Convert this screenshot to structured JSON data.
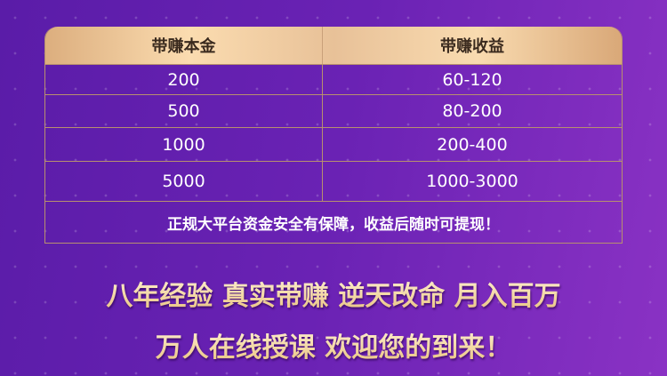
{
  "table": {
    "headers": [
      "带赚本金",
      "带赚收益"
    ],
    "rows": [
      [
        "200",
        "60-120"
      ],
      [
        "500",
        "80-200"
      ],
      [
        "1000",
        "200-400"
      ],
      [
        "5000",
        "1000-3000"
      ]
    ],
    "note": "正规大平台资金安全有保障，收益后随时可提现！"
  },
  "slogans": [
    "八年经验 真实带赚 逆天改命 月入百万",
    "万人在线授课 欢迎您的到来！"
  ]
}
